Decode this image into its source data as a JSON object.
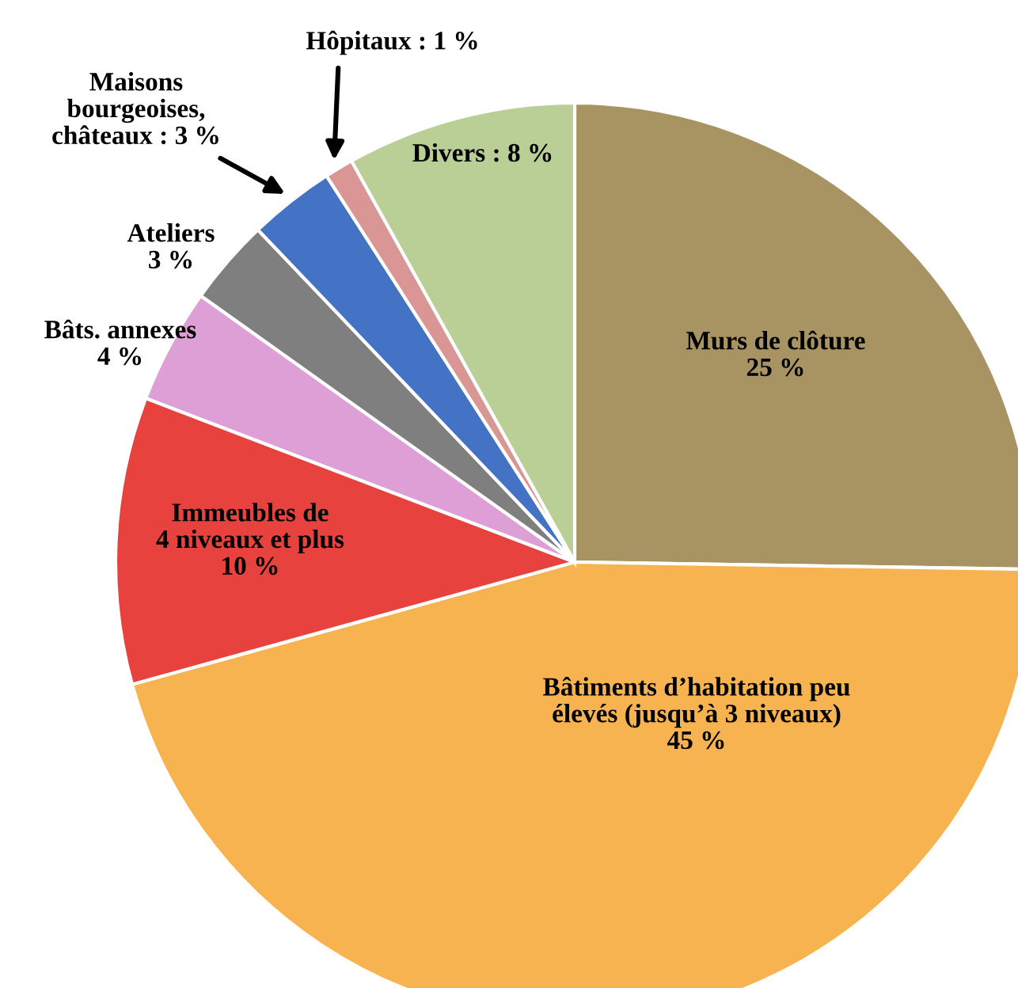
{
  "chart_data": {
    "type": "pie",
    "categories": [
      "Murs de clôture",
      "Bâtiments d’habitation peu\nélevés (jusqu’à 3 niveaux)",
      "Immeubles de\n4 niveaux et plus",
      "Bâts. annexes",
      "Ateliers",
      "Maisons\nbourgeoises,\nchâteaux",
      "Hôpitaux",
      "Divers"
    ],
    "values": [
      25,
      45,
      10,
      4,
      3,
      3,
      1,
      8
    ],
    "value_labels": [
      "25 %",
      "45 %",
      "10 %",
      "4 %",
      "3 %",
      "3 %",
      "1 %",
      "8 %"
    ],
    "colors": [
      "#a89463",
      "#f7b350",
      "#e8423e",
      "#de9fd7",
      "#7f7f7f",
      "#4472c4",
      "#d99694",
      "#b9cf96"
    ],
    "legend": false
  }
}
